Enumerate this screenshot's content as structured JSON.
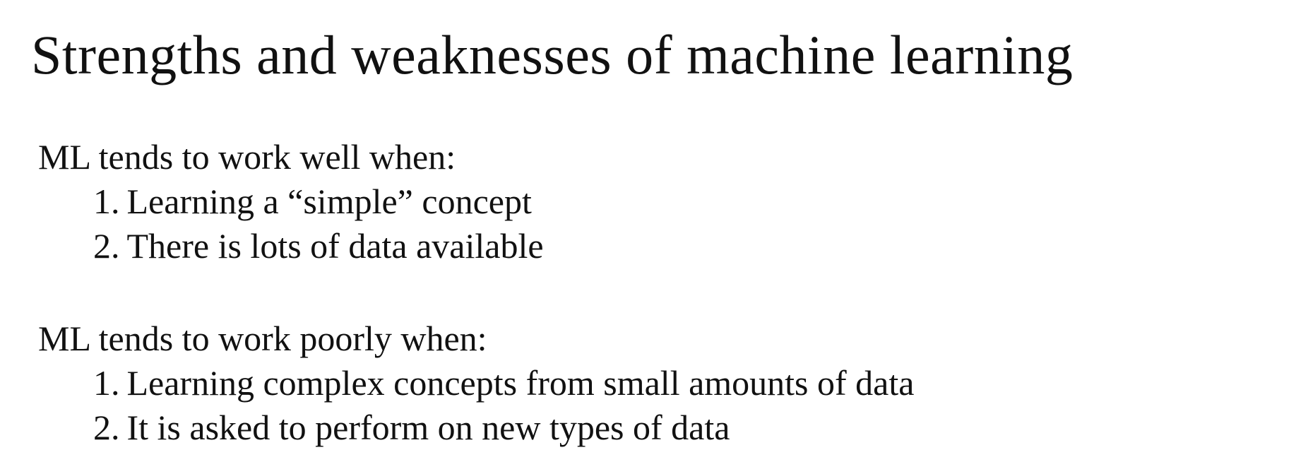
{
  "slide": {
    "title": "Strengths and weaknesses of machine learning",
    "sections": [
      {
        "heading": "ML tends to work well when:",
        "items": [
          {
            "number": "1.",
            "text": "Learning a “simple” concept"
          },
          {
            "number": "2.",
            "text": "There is lots of data available"
          }
        ]
      },
      {
        "heading": "ML tends to work poorly when:",
        "items": [
          {
            "number": "1.",
            "text": "Learning complex concepts from small amounts of data"
          },
          {
            "number": "2.",
            "text": "It is asked to perform on new types of data"
          }
        ]
      }
    ]
  }
}
